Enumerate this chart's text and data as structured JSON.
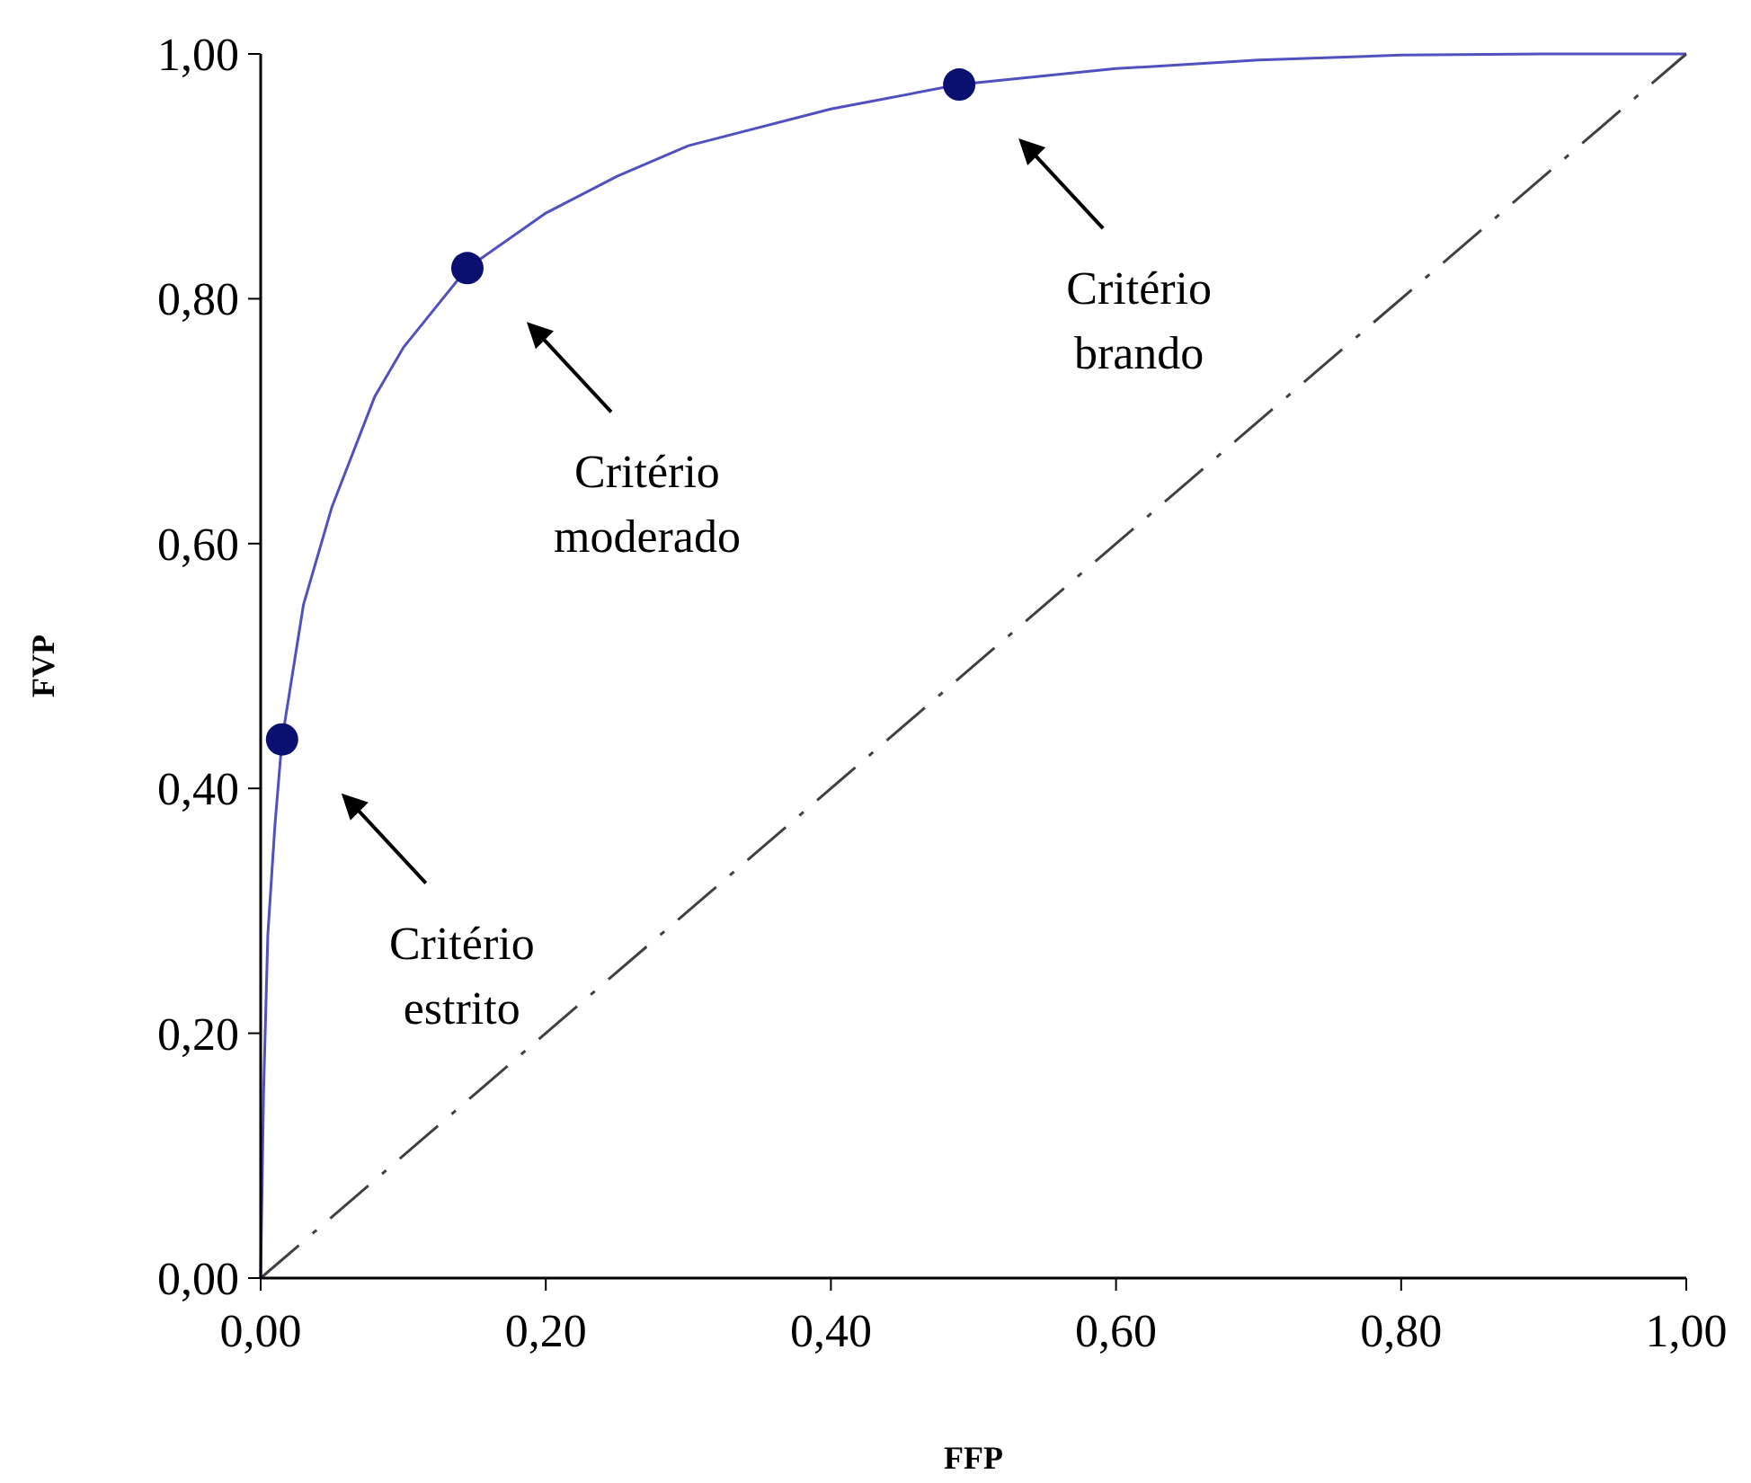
{
  "chart_data": {
    "type": "line",
    "xlabel": "FFP",
    "ylabel": "FVP",
    "xlim": [
      0,
      1
    ],
    "ylim": [
      0,
      1
    ],
    "xticks": [
      {
        "value": 0,
        "label": "0,00"
      },
      {
        "value": 0.2,
        "label": "0,20"
      },
      {
        "value": 0.4,
        "label": "0,40"
      },
      {
        "value": 0.6,
        "label": "0,60"
      },
      {
        "value": 0.8,
        "label": "0,80"
      },
      {
        "value": 1,
        "label": "1,00"
      }
    ],
    "yticks": [
      {
        "value": 0,
        "label": "0,00"
      },
      {
        "value": 0.2,
        "label": "0,20"
      },
      {
        "value": 0.4,
        "label": "0,40"
      },
      {
        "value": 0.6,
        "label": "0,60"
      },
      {
        "value": 0.8,
        "label": "0,80"
      },
      {
        "value": 1,
        "label": "1,00"
      }
    ],
    "grid": false,
    "series": [
      {
        "color": "#5050c0",
        "line_style": "solid",
        "marker": "none",
        "x": [
          0,
          0.002,
          0.005,
          0.01,
          0.015,
          0.03,
          0.05,
          0.08,
          0.1,
          0.145,
          0.2,
          0.25,
          0.3,
          0.4,
          0.49,
          0.6,
          0.7,
          0.8,
          0.9,
          1
        ],
        "values": [
          0,
          0.15,
          0.28,
          0.37,
          0.44,
          0.55,
          0.63,
          0.72,
          0.76,
          0.825,
          0.87,
          0.9,
          0.925,
          0.955,
          0.975,
          0.988,
          0.995,
          0.999,
          1,
          1
        ]
      },
      {
        "type": "line",
        "color": "#404040",
        "line_style": "dashed",
        "marker": "none",
        "x": [
          0,
          1
        ],
        "values": [
          0,
          1
        ]
      },
      {
        "type": "scatter",
        "color": "#0a1070",
        "marker": "circle",
        "x": [
          0.015,
          0.145,
          0.49
        ],
        "values": [
          0.44,
          0.825,
          0.975
        ]
      }
    ],
    "annotations": [
      "Critério\nestrito",
      "Critério\nmoderado",
      "Critério\nbrando"
    ]
  }
}
